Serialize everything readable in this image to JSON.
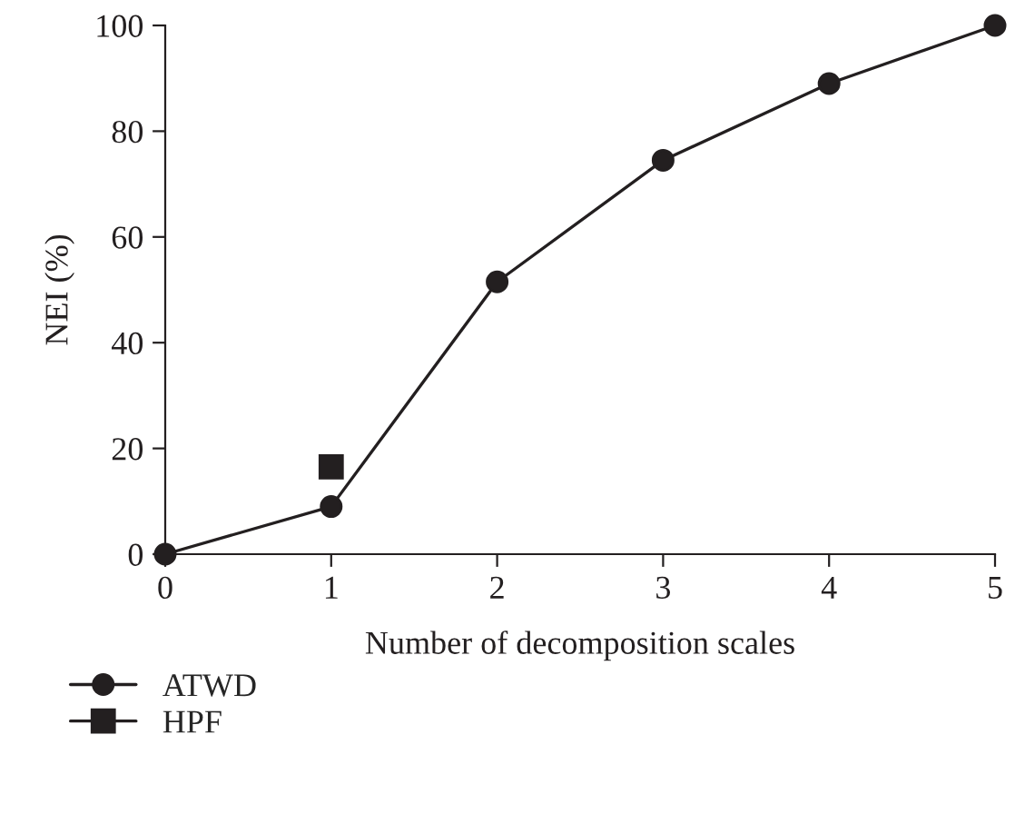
{
  "chart_data": {
    "type": "line",
    "xlabel": "Number of decomposition scales",
    "ylabel": "NEI (%)",
    "xlim": [
      0,
      5
    ],
    "xticks": [
      0,
      1,
      2,
      3,
      4,
      5
    ],
    "ylim": [
      0,
      100
    ],
    "yticks": [
      0,
      20,
      40,
      60,
      80,
      100
    ],
    "grid": false,
    "legend": "bottom left",
    "line_style": "solid",
    "series": [
      {
        "name": "ATWD",
        "color": "#231f20",
        "marker": "circle",
        "x": [
          0,
          1,
          2,
          3,
          4,
          5
        ],
        "values": [
          0,
          9,
          51.5,
          74.5,
          89,
          100
        ]
      },
      {
        "name": "HPF",
        "color": "#231f20",
        "marker": "square",
        "x": [
          1
        ],
        "values": [
          16.5
        ]
      }
    ]
  }
}
